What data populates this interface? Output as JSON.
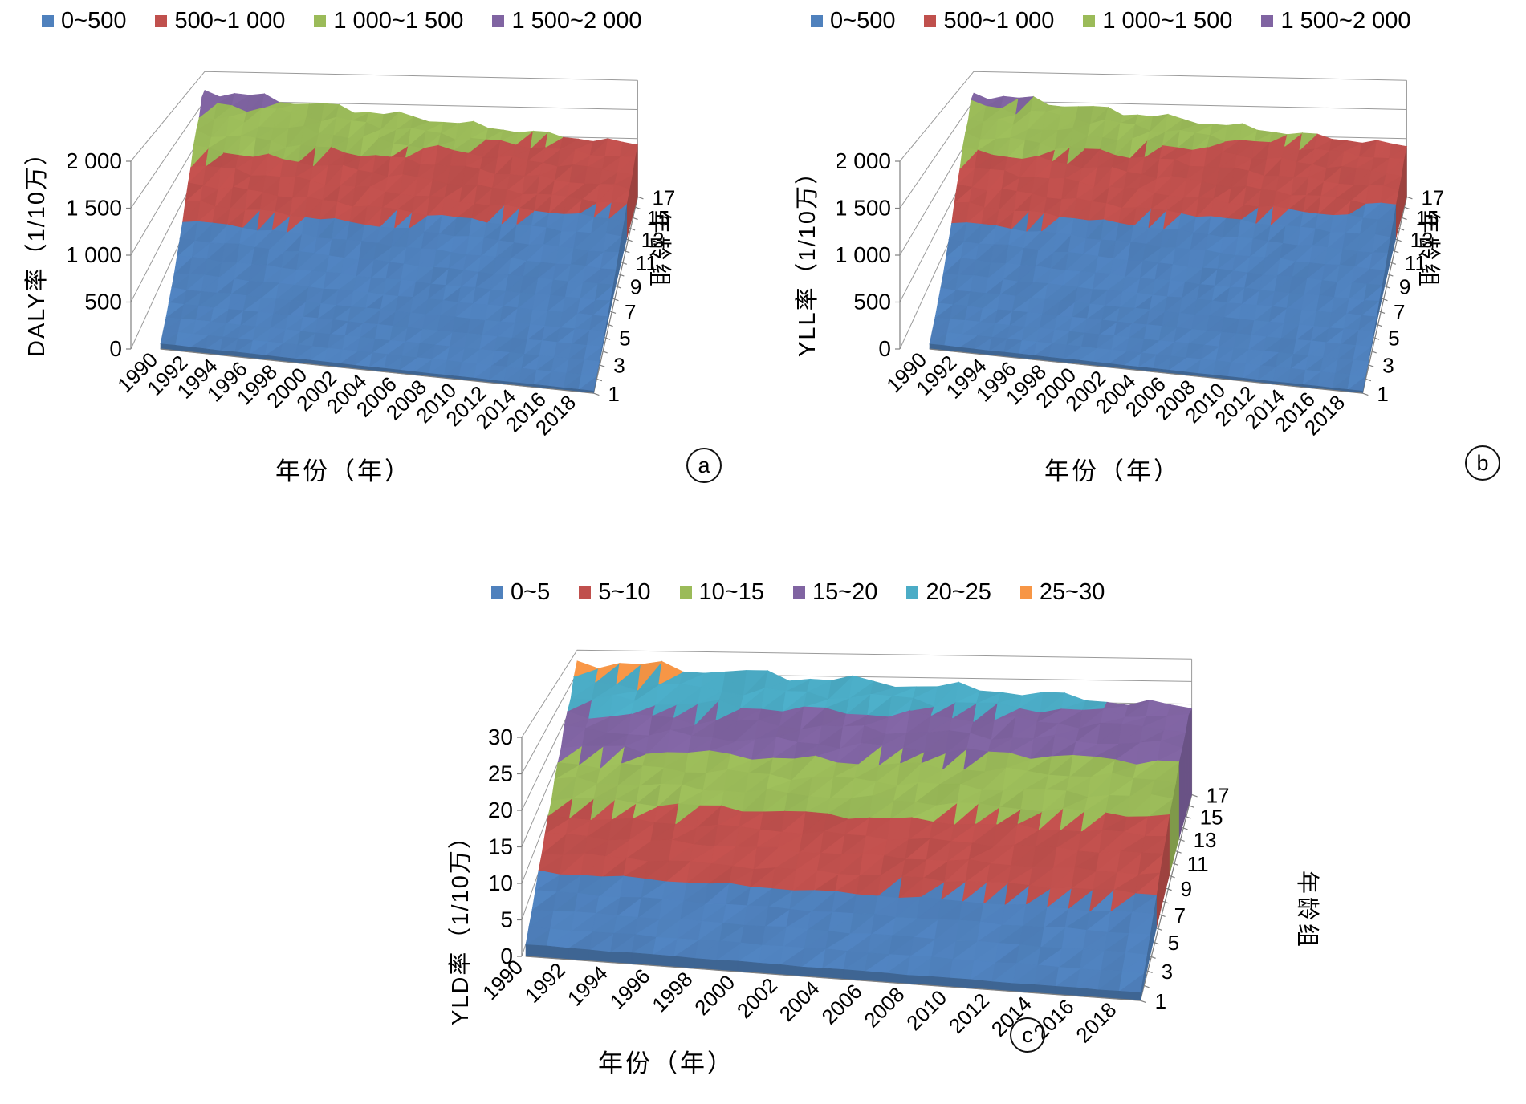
{
  "figure": {
    "panel_letters": [
      "a",
      "b",
      "c"
    ],
    "background": "#ffffff",
    "axis_line_color": "#808080",
    "gridline_color": "#9a9a9a"
  },
  "chart_data": [
    {
      "type": "surface3d",
      "panel_label": "a",
      "value_axis": {
        "title": "DALY率（1/10万）",
        "max": 2000,
        "tick_values": [
          0,
          500,
          1000,
          1500,
          2000
        ],
        "tick_labels": [
          "0",
          "500",
          "1 000",
          "1 500",
          "2 000"
        ]
      },
      "year_axis": {
        "title": "年份（年）",
        "range": [
          1990,
          2019
        ],
        "ticks": [
          1990,
          1992,
          1994,
          1996,
          1998,
          2000,
          2002,
          2004,
          2006,
          2008,
          2010,
          2012,
          2014,
          2016,
          2018
        ]
      },
      "age_axis": {
        "title": "年龄组",
        "range": [
          1,
          17
        ],
        "ticks": [
          1,
          3,
          5,
          7,
          9,
          11,
          13,
          15,
          17
        ]
      },
      "band_size": 500,
      "bands": [
        {
          "label": "0~500",
          "color": "#4F81BD"
        },
        {
          "label": "500~1 000",
          "color": "#C0504D"
        },
        {
          "label": "1 000~1 500",
          "color": "#9BBB59"
        },
        {
          "label": "1 500~2 000",
          "color": "#8064A2"
        }
      ],
      "age_groups": [
        1,
        2,
        3,
        4,
        5,
        6,
        7,
        8,
        9,
        10,
        11,
        12,
        13,
        14,
        15,
        16,
        17
      ],
      "years_sampled": [
        1990,
        1995,
        2000,
        2005,
        2010,
        2015,
        2019
      ],
      "values": [
        [
          55,
          49,
          43,
          37,
          32,
          28,
          25
        ],
        [
          68,
          60,
          53,
          46,
          39,
          34,
          30
        ],
        [
          88,
          78,
          68,
          59,
          50,
          43,
          38
        ],
        [
          120,
          106,
          92,
          79,
          67,
          57,
          51
        ],
        [
          165,
          146,
          127,
          109,
          93,
          79,
          70
        ],
        [
          225,
          198,
          172,
          148,
          126,
          107,
          95
        ],
        [
          300,
          265,
          230,
          198,
          168,
          143,
          127
        ],
        [
          400,
          355,
          308,
          265,
          225,
          192,
          170
        ],
        [
          520,
          460,
          400,
          345,
          295,
          250,
          220
        ],
        [
          655,
          580,
          510,
          440,
          375,
          320,
          285
        ],
        [
          800,
          715,
          630,
          550,
          470,
          405,
          360
        ],
        [
          950,
          855,
          760,
          660,
          570,
          490,
          440
        ],
        [
          1100,
          1000,
          890,
          780,
          675,
          585,
          525
        ],
        [
          1250,
          1140,
          1020,
          905,
          790,
          690,
          620
        ],
        [
          1400,
          1280,
          1160,
          1030,
          900,
          790,
          710
        ],
        [
          1560,
          1430,
          1290,
          1150,
          1010,
          890,
          800
        ],
        [
          1680,
          1540,
          1400,
          1260,
          1120,
          990,
          900
        ]
      ]
    },
    {
      "type": "surface3d",
      "panel_label": "b",
      "value_axis": {
        "title": "YLL率（1/10万）",
        "max": 2000,
        "tick_values": [
          0,
          500,
          1000,
          1500,
          2000
        ],
        "tick_labels": [
          "0",
          "500",
          "1 000",
          "1 500",
          "2 000"
        ]
      },
      "year_axis": {
        "title": "年份（年）",
        "range": [
          1990,
          2019
        ],
        "ticks": [
          1990,
          1992,
          1994,
          1996,
          1998,
          2000,
          2002,
          2004,
          2006,
          2008,
          2010,
          2012,
          2014,
          2016,
          2018
        ]
      },
      "age_axis": {
        "title": "年龄组",
        "range": [
          1,
          17
        ],
        "ticks": [
          1,
          3,
          5,
          7,
          9,
          11,
          13,
          15,
          17
        ]
      },
      "band_size": 500,
      "bands": [
        {
          "label": "0~500",
          "color": "#4F81BD"
        },
        {
          "label": "500~1 000",
          "color": "#C0504D"
        },
        {
          "label": "1 000~1 500",
          "color": "#9BBB59"
        },
        {
          "label": "1 500~2 000",
          "color": "#8064A2"
        }
      ],
      "age_groups": [
        1,
        2,
        3,
        4,
        5,
        6,
        7,
        8,
        9,
        10,
        11,
        12,
        13,
        14,
        15,
        16,
        17
      ],
      "years_sampled": [
        1990,
        1995,
        2000,
        2005,
        2010,
        2015,
        2019
      ],
      "values": [
        [
          53,
          47,
          42,
          36,
          31,
          27,
          24
        ],
        [
          66,
          58,
          51,
          44,
          38,
          33,
          29
        ],
        [
          85,
          75,
          66,
          57,
          48,
          42,
          37
        ],
        [
          116,
          103,
          89,
          77,
          65,
          55,
          49
        ],
        [
          160,
          142,
          123,
          106,
          90,
          77,
          68
        ],
        [
          218,
          192,
          167,
          143,
          122,
          104,
          92
        ],
        [
          291,
          257,
          223,
          192,
          163,
          139,
          123
        ],
        [
          388,
          344,
          299,
          257,
          218,
          186,
          165
        ],
        [
          505,
          447,
          388,
          335,
          286,
          243,
          213
        ],
        [
          636,
          563,
          495,
          427,
          364,
          310,
          276
        ],
        [
          777,
          694,
          611,
          534,
          456,
          393,
          349
        ],
        [
          922,
          830,
          737,
          640,
          553,
          475,
          427
        ],
        [
          1068,
          970,
          863,
          757,
          655,
          567,
          509
        ],
        [
          1213,
          1106,
          990,
          878,
          766,
          669,
          601
        ],
        [
          1359,
          1242,
          1126,
          1000,
          873,
          766,
          689
        ],
        [
          1514,
          1388,
          1252,
          1116,
          980,
          863,
          776
        ],
        [
          1630,
          1494,
          1358,
          1222,
          1086,
          960,
          873
        ]
      ]
    },
    {
      "type": "surface3d",
      "panel_label": "c",
      "value_axis": {
        "title": "YLD率（1/10万）",
        "max": 30,
        "tick_values": [
          0,
          5,
          10,
          15,
          20,
          25,
          30
        ],
        "tick_labels": [
          "0",
          "5",
          "10",
          "15",
          "20",
          "25",
          "30"
        ]
      },
      "year_axis": {
        "title": "年份（年）",
        "range": [
          1990,
          2019
        ],
        "ticks": [
          1990,
          1992,
          1994,
          1996,
          1998,
          2000,
          2002,
          2004,
          2006,
          2008,
          2010,
          2012,
          2014,
          2016,
          2018
        ]
      },
      "age_axis": {
        "title": "年龄组",
        "range": [
          1,
          17
        ],
        "ticks": [
          1,
          3,
          5,
          7,
          9,
          11,
          13,
          15,
          17
        ]
      },
      "band_size": 5,
      "bands": [
        {
          "label": "0~5",
          "color": "#4F81BD"
        },
        {
          "label": "5~10",
          "color": "#C0504D"
        },
        {
          "label": "10~15",
          "color": "#9BBB59"
        },
        {
          "label": "15~20",
          "color": "#8064A2"
        },
        {
          "label": "20~25",
          "color": "#4BACC6"
        },
        {
          "label": "25~30",
          "color": "#F79646"
        }
      ],
      "age_groups": [
        1,
        2,
        3,
        4,
        5,
        6,
        7,
        8,
        9,
        10,
        11,
        12,
        13,
        14,
        15,
        16,
        17
      ],
      "years_sampled": [
        1990,
        1995,
        2000,
        2005,
        2010,
        2015,
        2019
      ],
      "values": [
        [
          1.6,
          1.5,
          1.4,
          1.3,
          1.2,
          1.1,
          1.1
        ],
        [
          2.3,
          2.2,
          2.1,
          2.0,
          1.9,
          1.8,
          1.7
        ],
        [
          3.1,
          3.0,
          2.9,
          2.7,
          2.6,
          2.5,
          2.4
        ],
        [
          4.1,
          4.0,
          3.8,
          3.6,
          3.5,
          3.3,
          3.2
        ],
        [
          5.3,
          5.1,
          4.9,
          4.7,
          4.5,
          4.3,
          4.2
        ],
        [
          6.6,
          6.4,
          6.1,
          5.9,
          5.7,
          5.5,
          5.3
        ],
        [
          7.9,
          7.7,
          7.4,
          7.1,
          6.9,
          6.6,
          6.4
        ],
        [
          9.3,
          9.1,
          8.7,
          8.4,
          8.1,
          7.8,
          7.6
        ],
        [
          10.9,
          10.6,
          10.2,
          9.8,
          9.5,
          9.1,
          8.9
        ],
        [
          12.5,
          12.1,
          11.7,
          11.3,
          10.9,
          10.5,
          10.2
        ],
        [
          14.1,
          13.7,
          13.2,
          12.8,
          12.3,
          11.9,
          11.6
        ],
        [
          15.9,
          15.4,
          14.9,
          14.4,
          13.9,
          13.4,
          13.1
        ],
        [
          17.7,
          17.2,
          16.6,
          16.0,
          15.5,
          15.0,
          14.6
        ],
        [
          19.6,
          19.0,
          18.4,
          17.8,
          17.2,
          16.6,
          16.2
        ],
        [
          21.6,
          21.0,
          20.3,
          19.6,
          19.0,
          18.3,
          17.9
        ],
        [
          23.9,
          23.2,
          22.4,
          21.7,
          20.4,
          19.4,
          18.8
        ],
        [
          27.6,
          26.3,
          24.9,
          23.6,
          22.4,
          20.5,
          19.2
        ]
      ]
    }
  ]
}
